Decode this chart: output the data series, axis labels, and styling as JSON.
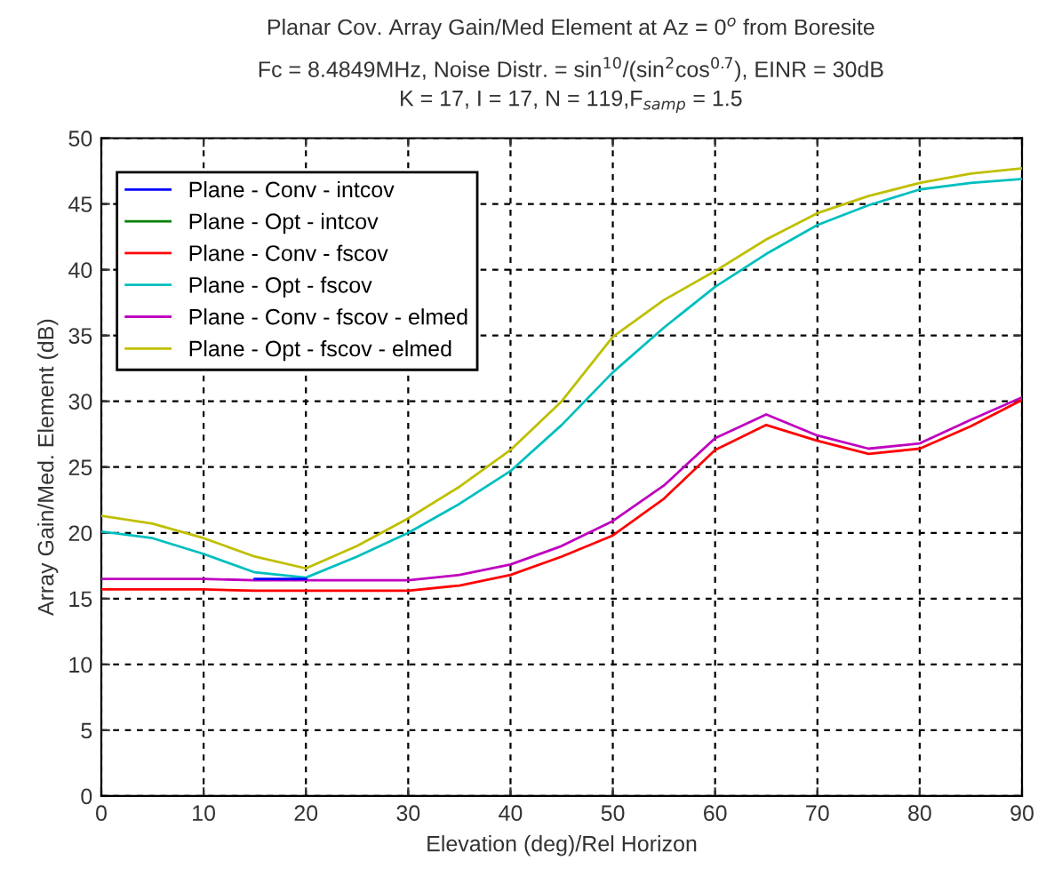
{
  "chart_data": {
    "type": "line",
    "title": "Planar Cov. Array Gain/Med Element at Az = 0$^{o}$ from Boresite",
    "subtitle": "Fc = 8.4849MHz, Noise Distr. = sin$^{10}$/(sin$^{2}$cos$^{0.7}$), EINR = 30dB\nK = 17, I = 17, N = 119,F$_{samp}$ = 1.5",
    "xlabel": "Elevation (deg)/Rel Horizon",
    "ylabel": "Array Gain/Med. Element (dB)",
    "x": [
      0,
      5,
      10,
      15,
      20,
      25,
      30,
      35,
      40,
      45,
      50,
      55,
      60,
      65,
      70,
      75,
      80,
      85,
      90
    ],
    "series": [
      {
        "name": "Plane - Conv - intcov",
        "color": "#0000ff",
        "values": [
          null,
          null,
          null,
          16.5,
          16.5,
          null,
          null,
          null,
          null,
          null,
          null,
          null,
          null,
          null,
          null,
          null,
          null,
          null,
          null
        ]
      },
      {
        "name": "Plane - Opt - intcov",
        "color": "#008000",
        "values": [
          null,
          null,
          null,
          null,
          null,
          null,
          null,
          null,
          null,
          null,
          null,
          null,
          null,
          null,
          null,
          null,
          null,
          null,
          null
        ]
      },
      {
        "name": "Plane - Conv - fscov",
        "color": "#ff0000",
        "values": [
          15.7,
          15.7,
          15.7,
          15.6,
          15.6,
          15.6,
          15.6,
          16.0,
          16.8,
          18.2,
          19.8,
          22.6,
          26.3,
          28.2,
          27.0,
          26.0,
          26.4,
          28.1,
          30.1
        ]
      },
      {
        "name": "Plane - Opt - fscov",
        "color": "#00bfbf",
        "values": [
          20.1,
          19.6,
          18.4,
          17.0,
          16.6,
          18.2,
          20.0,
          22.2,
          24.7,
          28.2,
          32.2,
          35.6,
          38.7,
          41.2,
          43.4,
          44.9,
          46.1,
          46.6,
          46.9
        ]
      },
      {
        "name": "Plane - Conv - fscov - elmed",
        "color": "#bf00bf",
        "values": [
          16.5,
          16.5,
          16.5,
          16.4,
          16.4,
          16.4,
          16.4,
          16.8,
          17.6,
          19.0,
          20.9,
          23.6,
          27.2,
          29.0,
          27.4,
          26.4,
          26.8,
          28.6,
          30.3
        ]
      },
      {
        "name": "Plane - Opt - fscov - elmed",
        "color": "#bfbf00",
        "values": [
          21.3,
          20.7,
          19.6,
          18.2,
          17.3,
          19.0,
          21.1,
          23.5,
          26.3,
          30.0,
          34.9,
          37.7,
          39.9,
          42.3,
          44.3,
          45.6,
          46.6,
          47.3,
          47.7
        ]
      }
    ],
    "xlim": [
      0,
      90
    ],
    "xticks": [
      0,
      10,
      20,
      30,
      40,
      50,
      60,
      70,
      80,
      90
    ],
    "ylim": [
      0,
      50
    ],
    "yticks": [
      0,
      5,
      10,
      15,
      20,
      25,
      30,
      35,
      40,
      45,
      50
    ],
    "grid": true,
    "legend": "top left",
    "marker": "none",
    "line_style": "solid"
  }
}
